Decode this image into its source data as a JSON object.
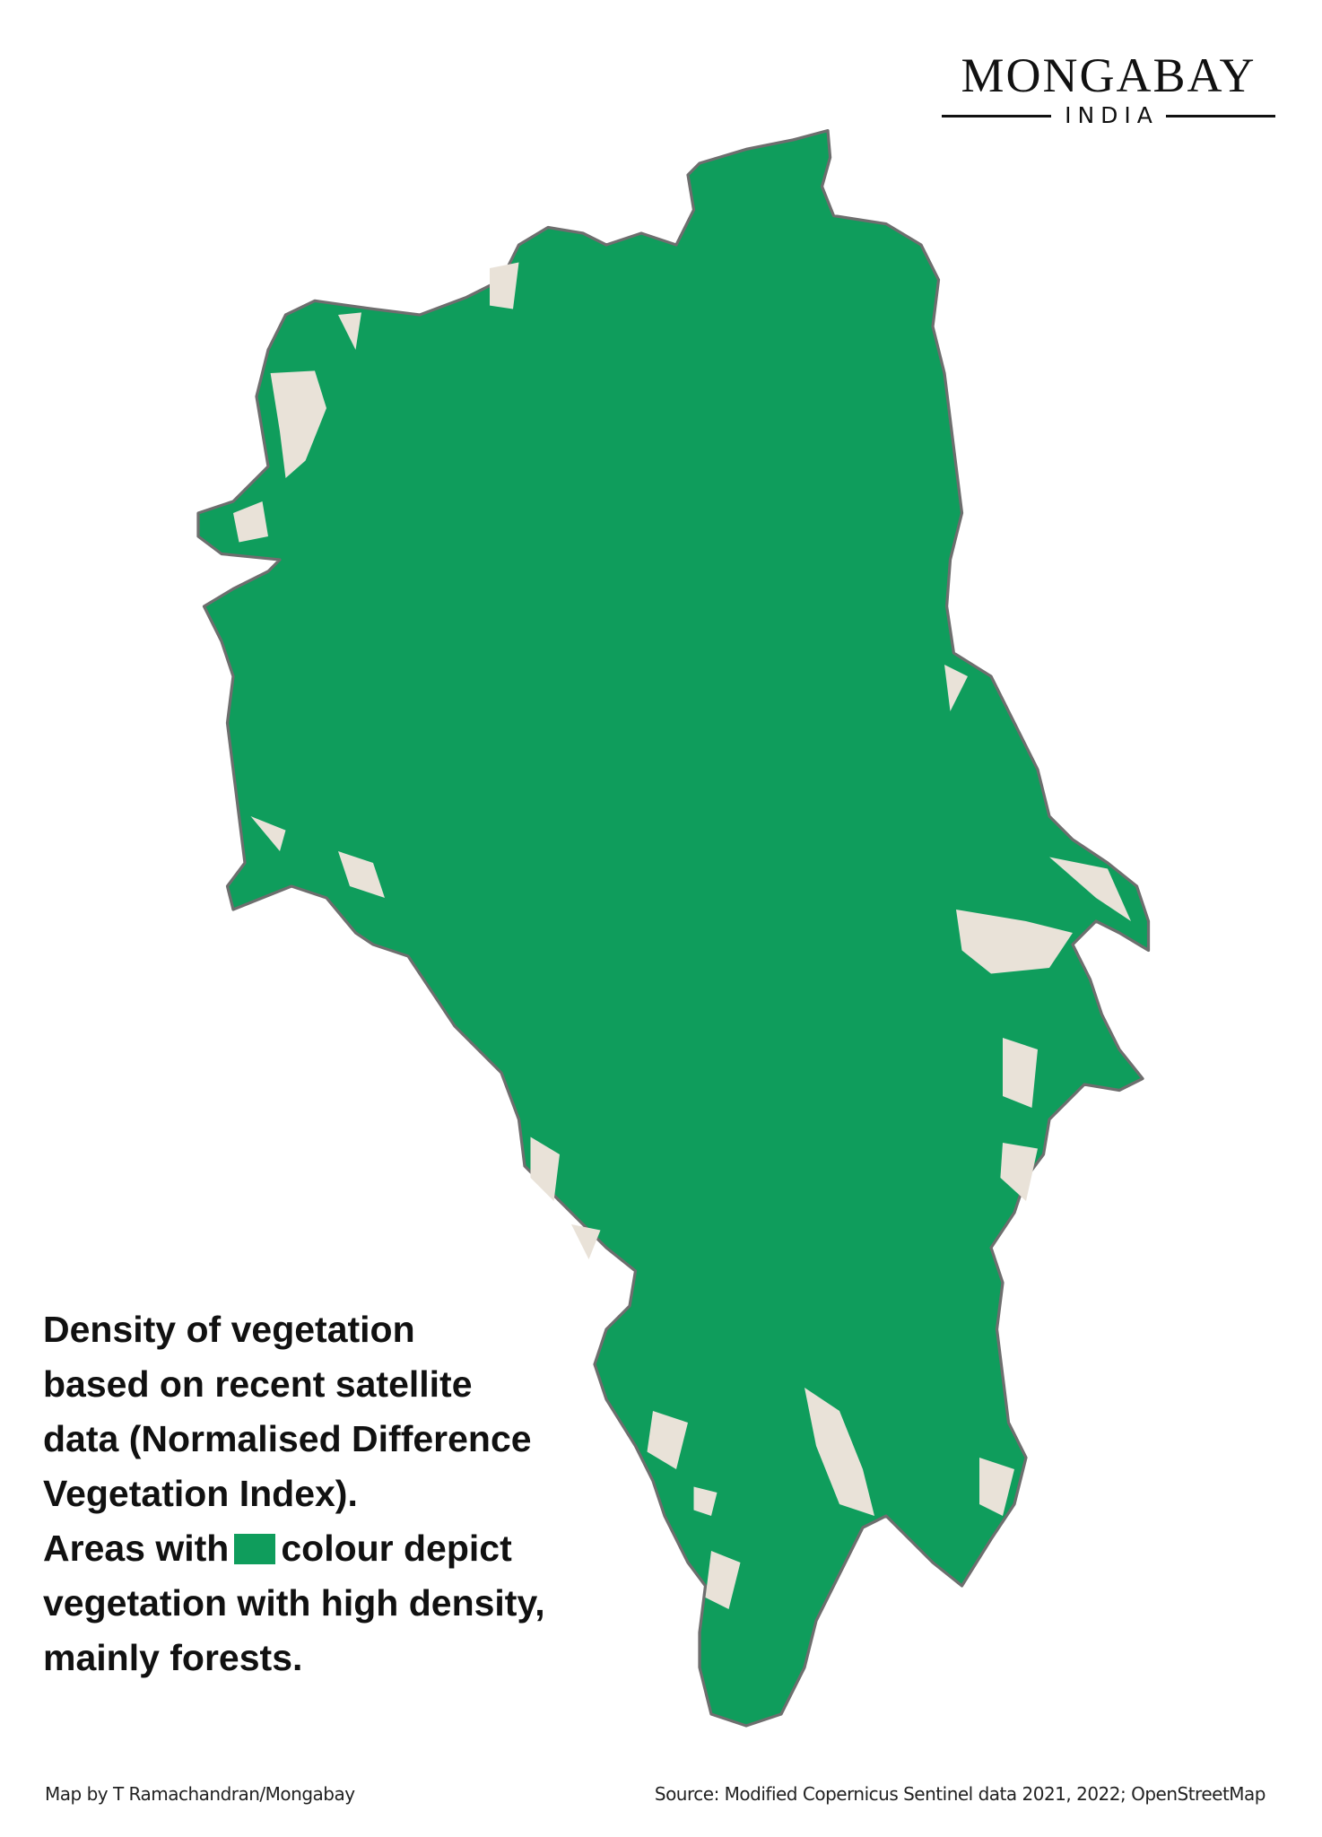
{
  "logo": {
    "wordmark": "MONGABAY",
    "sub": "INDIA"
  },
  "caption": {
    "lines": [
      "Density of vegetation",
      "based on recent satellite",
      "data (Normalised Difference",
      "Vegetation Index)."
    ],
    "legend_before": "Areas with",
    "legend_after": "colour depict",
    "lines_after": [
      "vegetation with high density,",
      "mainly forests."
    ]
  },
  "legend": {
    "high_density_vegetation_color": "#0f9d5c",
    "other_land_color": "#e9e2d8",
    "coastline_color": "#6e6e6e"
  },
  "footer": {
    "credit": "Map by T Ramachandran/Mongabay",
    "source": "Source: Modified Copernicus Sentinel data 2021, 2022; OpenStreetMap"
  }
}
